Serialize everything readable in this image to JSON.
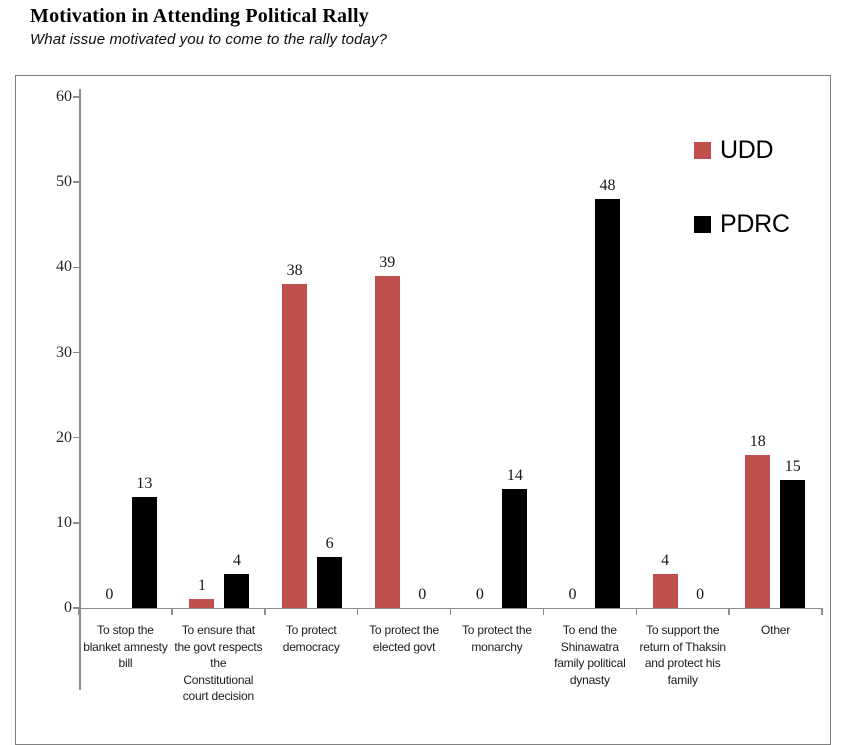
{
  "chart_data": {
    "type": "bar",
    "title": "Motivation in Attending Political Rally",
    "subtitle": "What issue motivated you to come to the rally today?",
    "categories": [
      "To stop the blanket amnesty bill",
      "To ensure that the govt respects the Constitutional court decision",
      "To protect democracy",
      "To protect the elected govt",
      "To protect the monarchy",
      "To end the Shinawatra family political dynasty",
      "To support the return of Thaksin and protect his family",
      "Other"
    ],
    "series": [
      {
        "name": "UDD",
        "color": "#c0504d",
        "values": [
          0,
          1,
          38,
          39,
          0,
          0,
          4,
          18
        ]
      },
      {
        "name": "PDRC",
        "color": "#000000",
        "values": [
          13,
          4,
          6,
          0,
          14,
          48,
          0,
          15
        ]
      }
    ],
    "ylim": [
      0,
      60
    ],
    "yticks": [
      0,
      10,
      20,
      30,
      40,
      50,
      60
    ],
    "grid": false,
    "value_labels": true,
    "legend_position": "upper-right",
    "axis_color": "#8c8c8c"
  }
}
